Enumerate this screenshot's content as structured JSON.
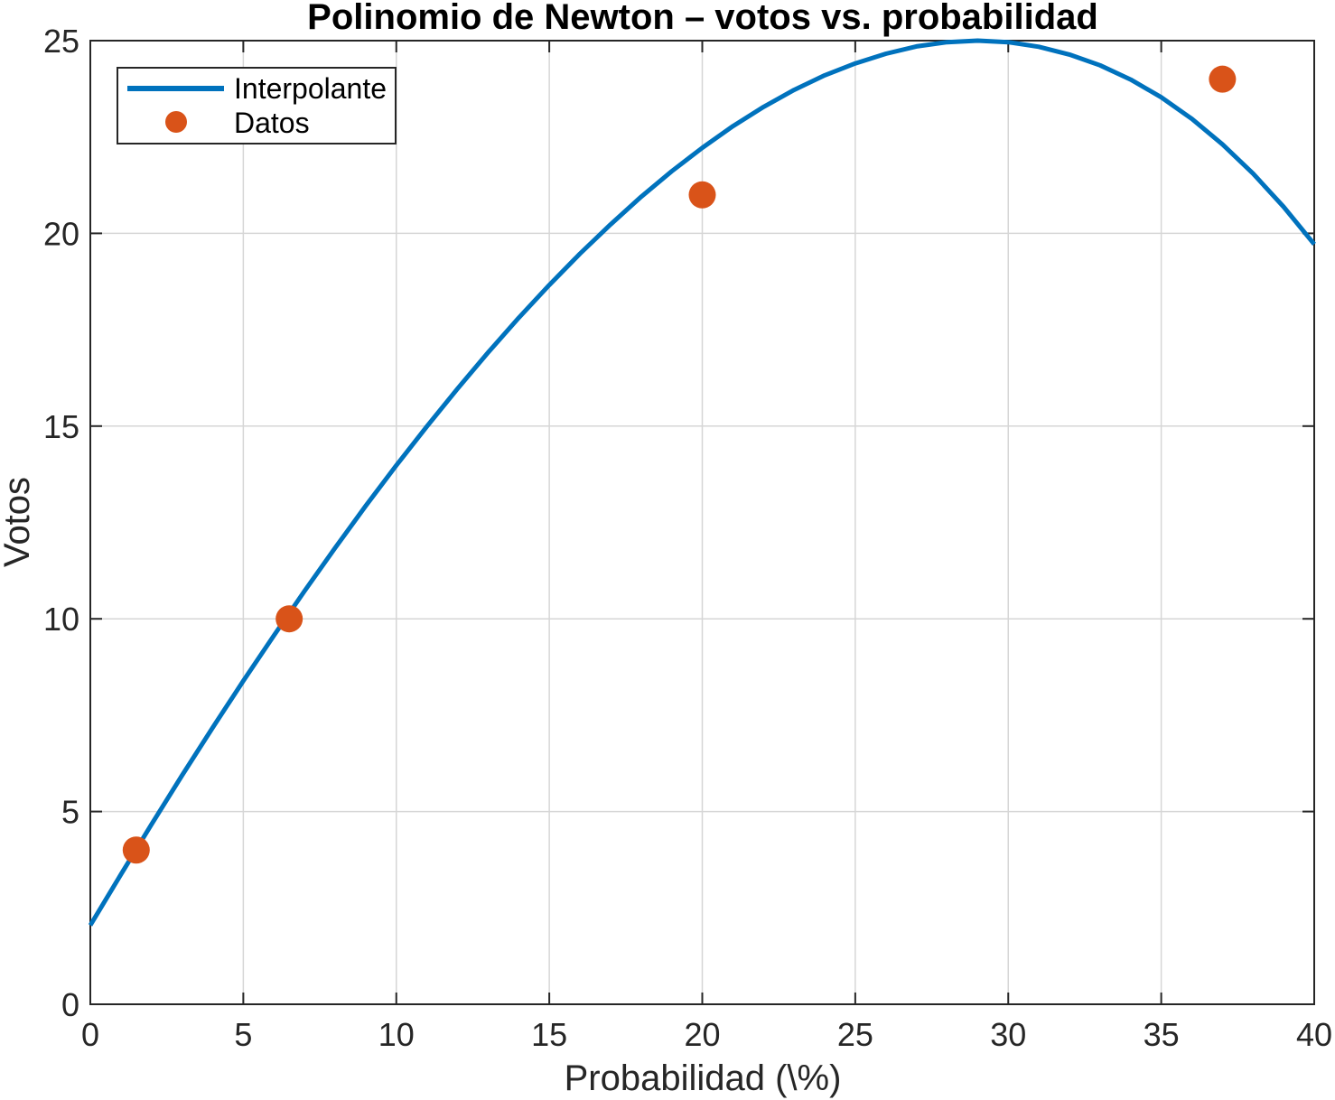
{
  "chart_data": {
    "type": "line",
    "title": "Polinomio de Newton – votos vs. probabilidad",
    "xlabel": "Probabilidad (\\%)",
    "ylabel": "Votos",
    "xlim": [
      0,
      40
    ],
    "ylim": [
      0,
      25
    ],
    "xticks": [
      0,
      5,
      10,
      15,
      20,
      25,
      30,
      35,
      40
    ],
    "yticks": [
      0,
      5,
      10,
      15,
      20,
      25
    ],
    "grid": true,
    "legend_position": "top-left",
    "series": [
      {
        "name": "Interpolante",
        "kind": "line",
        "color": "#0072BD",
        "x": [
          0,
          1,
          2,
          3,
          4,
          5,
          6,
          7,
          8,
          9,
          10,
          11,
          12,
          13,
          14,
          15,
          16,
          17,
          18,
          19,
          20,
          21,
          22,
          23,
          24,
          25,
          26,
          27,
          28,
          29,
          30,
          31,
          32,
          33,
          34,
          35,
          36,
          37,
          38,
          39,
          40
        ],
        "y": [
          2.05,
          3.37,
          4.67,
          5.94,
          7.18,
          8.39,
          9.57,
          10.72,
          11.84,
          12.93,
          13.98,
          14.99,
          15.97,
          16.91,
          17.81,
          18.66,
          19.47,
          20.23,
          20.95,
          21.61,
          22.22,
          22.78,
          23.28,
          23.72,
          24.1,
          24.41,
          24.66,
          24.85,
          24.96,
          25.0,
          24.96,
          24.84,
          24.64,
          24.36,
          23.99,
          23.53,
          22.97,
          22.31,
          21.55,
          20.69,
          19.72
        ]
      },
      {
        "name": "Datos",
        "kind": "markers",
        "color": "#D95319",
        "x": [
          1.5,
          6.5,
          20,
          37
        ],
        "y": [
          4,
          10,
          21,
          24
        ]
      }
    ]
  }
}
